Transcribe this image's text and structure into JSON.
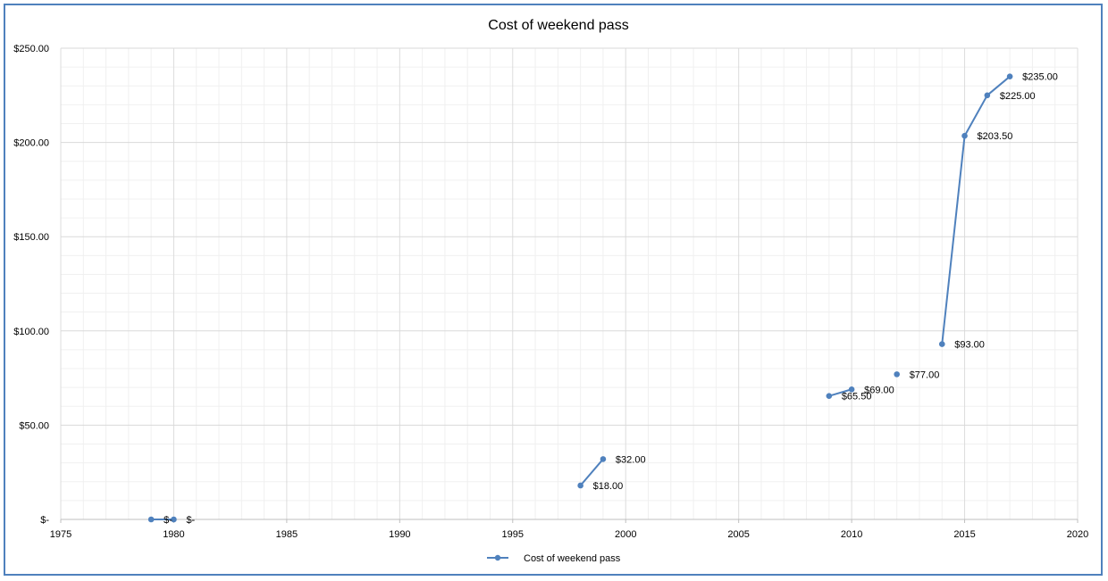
{
  "chart_data": {
    "type": "line",
    "title": "Cost of weekend pass",
    "xlabel": "",
    "ylabel": "",
    "xlim": [
      1975,
      2020
    ],
    "ylim": [
      0,
      250
    ],
    "x_ticks": [
      1975,
      1980,
      1985,
      1990,
      1995,
      2000,
      2005,
      2010,
      2015,
      2020
    ],
    "x_tick_labels": [
      "1975",
      "1980",
      "1985",
      "1990",
      "1995",
      "2000",
      "2005",
      "2010",
      "2015",
      "2020"
    ],
    "y_ticks": [
      0,
      50,
      100,
      150,
      200,
      250
    ],
    "y_tick_labels": [
      "$-",
      "$50.00",
      "$100.00",
      "$150.00",
      "$200.00",
      "$250.00"
    ],
    "grid": true,
    "legend_position": "bottom",
    "series": [
      {
        "name": "Cost of weekend pass",
        "color": "#4f81bd",
        "segments": [
          [
            {
              "x": 1979,
              "y": 0,
              "label": "$-"
            },
            {
              "x": 1980,
              "y": 0,
              "label": "$-"
            }
          ],
          [
            {
              "x": 1998,
              "y": 18,
              "label": "$18.00"
            },
            {
              "x": 1999,
              "y": 32,
              "label": "$32.00"
            }
          ],
          [
            {
              "x": 2009,
              "y": 65.5,
              "label": "$65.50"
            },
            {
              "x": 2010,
              "y": 69,
              "label": "$69.00"
            }
          ],
          [
            {
              "x": 2012,
              "y": 77,
              "label": "$77.00"
            }
          ],
          [
            {
              "x": 2014,
              "y": 93,
              "label": "$93.00"
            },
            {
              "x": 2015,
              "y": 203.5,
              "label": "$203.50"
            },
            {
              "x": 2016,
              "y": 225,
              "label": "$225.00"
            },
            {
              "x": 2017,
              "y": 235,
              "label": "$235.00"
            }
          ]
        ]
      }
    ]
  }
}
